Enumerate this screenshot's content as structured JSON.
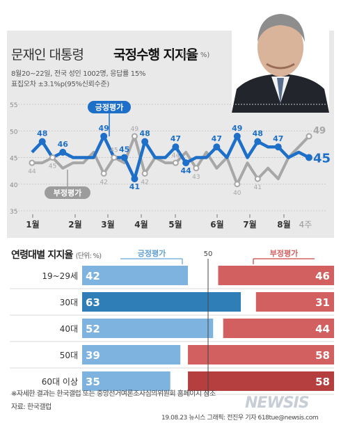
{
  "header": {
    "title_main": "문재인 대통령",
    "title_bold": "국정수행 지지율",
    "unit": "(단위: %)",
    "survey_line1": "8월20~22일, 전국 성인 1002명, 응답률 15%",
    "survey_line2": "표집오차 ±3.1%p(95%신뢰수준)"
  },
  "colors": {
    "positive": "#1e6fc8",
    "negative": "#a7a7a7",
    "bar_pos": "#7fb3df",
    "bar_pos_dark": "#2f7eb8",
    "bar_neg": "#d36060",
    "bar_neg_dark": "#b53e3e"
  },
  "chart_data": [
    {
      "type": "line",
      "ylim": [
        35,
        55
      ],
      "yticks": [
        35,
        40,
        45,
        50,
        55
      ],
      "month_labels": [
        "1월",
        "2월",
        "3월",
        "4월",
        "5월",
        "6월",
        "7월",
        "8월",
        "4주"
      ],
      "series": [
        {
          "name": "긍정평가",
          "values": [
            46,
            48,
            45,
            46,
            45,
            45,
            45,
            49,
            45,
            45,
            41,
            48,
            45,
            45,
            47,
            44,
            45,
            45,
            47,
            45,
            49,
            45,
            48,
            47,
            47,
            45,
            46,
            45
          ]
        },
        {
          "name": "부정평가",
          "values": [
            44,
            44,
            45,
            43,
            44,
            44,
            46,
            42,
            45,
            44,
            49,
            42,
            45,
            44,
            44,
            46,
            43,
            46,
            43,
            45,
            40,
            44,
            41,
            43,
            41,
            45,
            47,
            49
          ]
        }
      ],
      "labeled_points": [
        {
          "series": 0,
          "i": 1,
          "text": "48",
          "pos": "above"
        },
        {
          "series": 0,
          "i": 3,
          "text": "46",
          "pos": "above"
        },
        {
          "series": 0,
          "i": 7,
          "text": "49",
          "pos": "above"
        },
        {
          "series": 0,
          "i": 9,
          "text": "45",
          "pos": "above"
        },
        {
          "series": 0,
          "i": 10,
          "text": "41",
          "pos": "below"
        },
        {
          "series": 0,
          "i": 11,
          "text": "48",
          "pos": "above"
        },
        {
          "series": 0,
          "i": 14,
          "text": "47",
          "pos": "above"
        },
        {
          "series": 0,
          "i": 15,
          "text": "44",
          "pos": "below"
        },
        {
          "series": 0,
          "i": 18,
          "text": "47",
          "pos": "above"
        },
        {
          "series": 0,
          "i": 20,
          "text": "49",
          "pos": "above"
        },
        {
          "series": 0,
          "i": 22,
          "text": "48",
          "pos": "above"
        },
        {
          "series": 0,
          "i": 24,
          "text": "47",
          "pos": "above"
        },
        {
          "series": 0,
          "i": 27,
          "text": "45",
          "pos": "last"
        },
        {
          "series": 1,
          "i": 0,
          "text": "44",
          "pos": "below"
        },
        {
          "series": 1,
          "i": 2,
          "text": "45",
          "pos": "below"
        },
        {
          "series": 1,
          "i": 7,
          "text": "42",
          "pos": "below"
        },
        {
          "series": 1,
          "i": 8,
          "text": "45",
          "pos": "above"
        },
        {
          "series": 1,
          "i": 10,
          "text": "49",
          "pos": "above"
        },
        {
          "series": 1,
          "i": 11,
          "text": "42",
          "pos": "below"
        },
        {
          "series": 1,
          "i": 14,
          "text": "44",
          "pos": "above"
        },
        {
          "series": 1,
          "i": 16,
          "text": "43",
          "pos": "below"
        },
        {
          "series": 1,
          "i": 20,
          "text": "40",
          "pos": "below"
        },
        {
          "series": 1,
          "i": 22,
          "text": "41",
          "pos": "below"
        },
        {
          "series": 1,
          "i": 27,
          "text": "49",
          "pos": "last"
        }
      ],
      "legend": {
        "positive": "긍정평가",
        "negative": "부정평가"
      }
    },
    {
      "type": "bar",
      "title": "연령대별 지지율",
      "unit": "(단위: %)",
      "legend_pos": "긍정평가",
      "legend_neg": "부정평가",
      "midline_label": "50",
      "categories": [
        "19~29세",
        "30대",
        "40대",
        "50대",
        "60대 이상"
      ],
      "series": [
        {
          "name": "긍정평가",
          "values": [
            42,
            63,
            52,
            39,
            35
          ]
        },
        {
          "name": "부정평가",
          "values": [
            46,
            31,
            44,
            58,
            58
          ]
        }
      ],
      "xlim": [
        0,
        100
      ]
    }
  ],
  "footer": {
    "note": "※자세한 결과는 한국갤럽 또는 중앙선거여론조사심의위원회 홈페이지 참조",
    "source": "자료: 한국갤럽",
    "credit": "19.08.23  뉴시스 그래픽: 전진우 기자 618tue@newsis.com",
    "watermark": "NEWSIS"
  }
}
